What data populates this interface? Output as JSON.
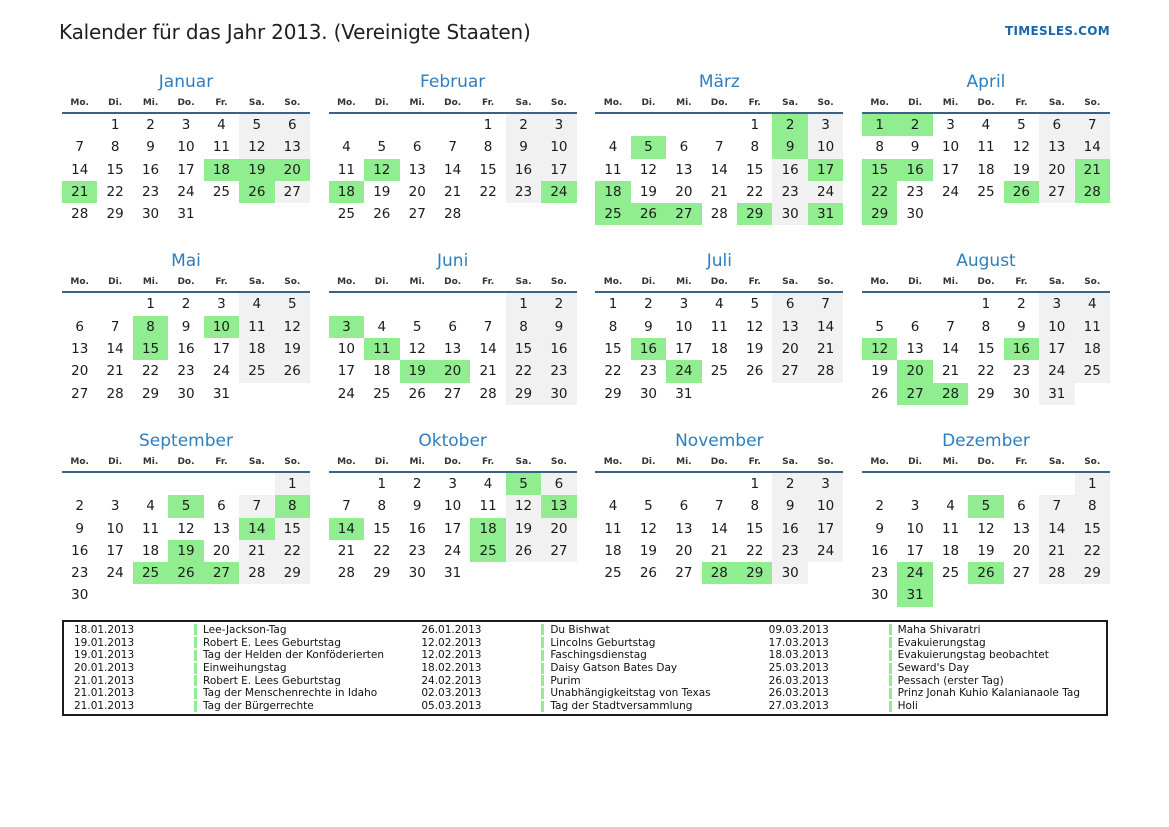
{
  "header": {
    "title": "Kalender für das Jahr 2013. (Vereinigte Staaten)",
    "brand": "TIMESLES.COM"
  },
  "calendar": {
    "weekdays": [
      "Mo.",
      "Di.",
      "Mi.",
      "Do.",
      "Fr.",
      "Sa.",
      "So."
    ],
    "weekend_columns": [
      5,
      6
    ],
    "months": [
      {
        "name": "Januar",
        "first_col": 1,
        "days": 31,
        "highlights": [
          18,
          19,
          20,
          21,
          26
        ]
      },
      {
        "name": "Februar",
        "first_col": 4,
        "days": 28,
        "highlights": [
          12,
          18,
          24
        ]
      },
      {
        "name": "März",
        "first_col": 4,
        "days": 31,
        "highlights": [
          2,
          5,
          9,
          17,
          18,
          25,
          26,
          27,
          29,
          31
        ]
      },
      {
        "name": "April",
        "first_col": 0,
        "days": 30,
        "highlights": [
          1,
          2,
          15,
          16,
          21,
          22,
          26,
          28,
          29
        ]
      },
      {
        "name": "Mai",
        "first_col": 2,
        "days": 31,
        "highlights": [
          8,
          10,
          15
        ]
      },
      {
        "name": "Juni",
        "first_col": 5,
        "days": 30,
        "highlights": [
          3,
          11,
          19,
          20
        ]
      },
      {
        "name": "Juli",
        "first_col": 0,
        "days": 31,
        "highlights": [
          16,
          24
        ]
      },
      {
        "name": "August",
        "first_col": 3,
        "days": 31,
        "highlights": [
          12,
          16,
          20,
          27,
          28
        ]
      },
      {
        "name": "September",
        "first_col": 6,
        "days": 30,
        "highlights": [
          5,
          8,
          14,
          19,
          25,
          26,
          27
        ]
      },
      {
        "name": "Oktober",
        "first_col": 1,
        "days": 31,
        "highlights": [
          5,
          13,
          14,
          18,
          25
        ]
      },
      {
        "name": "November",
        "first_col": 4,
        "days": 30,
        "highlights": [
          28,
          29
        ]
      },
      {
        "name": "Dezember",
        "first_col": 6,
        "days": 31,
        "highlights": [
          5,
          24,
          26,
          31
        ]
      }
    ]
  },
  "legend": {
    "columns": [
      [
        {
          "date": "18.01.2013",
          "name": "Lee-Jackson-Tag"
        },
        {
          "date": "19.01.2013",
          "name": "Robert E. Lees Geburtstag"
        },
        {
          "date": "19.01.2013",
          "name": "Tag der Helden der Konföderierten"
        },
        {
          "date": "20.01.2013",
          "name": "Einweihungstag"
        },
        {
          "date": "21.01.2013",
          "name": "Robert E. Lees Geburtstag"
        },
        {
          "date": "21.01.2013",
          "name": "Tag der Menschenrechte in Idaho"
        },
        {
          "date": "21.01.2013",
          "name": "Tag der Bürgerrechte"
        }
      ],
      [
        {
          "date": "26.01.2013",
          "name": "Du Bishwat"
        },
        {
          "date": "12.02.2013",
          "name": "Lincolns Geburtstag"
        },
        {
          "date": "12.02.2013",
          "name": "Faschingsdienstag"
        },
        {
          "date": "18.02.2013",
          "name": "Daisy Gatson Bates Day"
        },
        {
          "date": "24.02.2013",
          "name": "Purim"
        },
        {
          "date": "02.03.2013",
          "name": "Unabhängigkeitstag von Texas"
        },
        {
          "date": "05.03.2013",
          "name": "Tag der Stadtversammlung"
        }
      ],
      [
        {
          "date": "09.03.2013",
          "name": "Maha Shivaratri"
        },
        {
          "date": "17.03.2013",
          "name": "Evakuierungstag"
        },
        {
          "date": "18.03.2013",
          "name": "Evakuierungstag beobachtet"
        },
        {
          "date": "25.03.2013",
          "name": "Seward's Day"
        },
        {
          "date": "26.03.2013",
          "name": "Pessach (erster Tag)"
        },
        {
          "date": "26.03.2013",
          "name": "Prinz Jonah Kuhio Kalanianaole Tag"
        },
        {
          "date": "27.03.2013",
          "name": "Holi"
        }
      ]
    ]
  },
  "colors": {
    "green": "#90ee90",
    "weekend": "#f1f1f1",
    "month_blue": "#2d7ebf",
    "line_blue": "#3a6186",
    "brand_blue": "#1767ae"
  }
}
